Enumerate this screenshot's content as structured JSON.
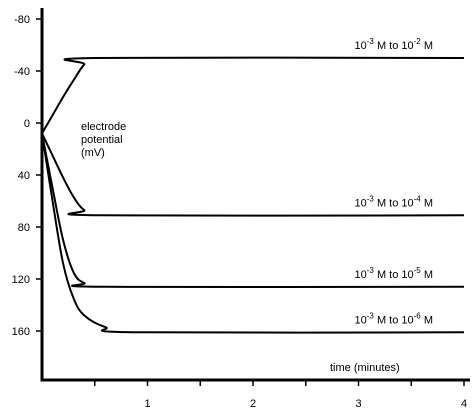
{
  "chart_data": {
    "type": "line",
    "title": "",
    "xlabel": "time (minutes)",
    "ylabel_lines": [
      "electrode",
      "potential",
      "(mV)"
    ],
    "xlim": [
      0,
      4
    ],
    "ylim": [
      -80,
      160
    ],
    "y_inverted": true,
    "grid": false,
    "x_ticks": [
      1,
      2,
      3,
      4
    ],
    "y_ticks": [
      -80,
      -40,
      0,
      40,
      80,
      120,
      160
    ],
    "series": [
      {
        "label": {
          "base": "10",
          "exp1": "-3",
          "mid": " M to 10",
          "exp2": "-2",
          "tail": " M"
        },
        "x": [
          0,
          0.1,
          0.2,
          0.3,
          0.4,
          0.5,
          4
        ],
        "y": [
          8,
          -6,
          -20,
          -33,
          -45,
          -50,
          -50
        ]
      },
      {
        "label": {
          "base": "10",
          "exp1": "-3",
          "mid": " M to 10",
          "exp2": "-4",
          "tail": " M"
        },
        "x": [
          0,
          0.1,
          0.2,
          0.3,
          0.4,
          0.55,
          4
        ],
        "y": [
          8,
          25,
          42,
          57,
          67,
          71,
          71
        ]
      },
      {
        "label": {
          "base": "10",
          "exp1": "-3",
          "mid": " M to 10",
          "exp2": "-5",
          "tail": " M"
        },
        "x": [
          0,
          0.1,
          0.2,
          0.3,
          0.4,
          0.6,
          4
        ],
        "y": [
          8,
          50,
          90,
          115,
          123,
          126,
          126
        ]
      },
      {
        "label": {
          "base": "10",
          "exp1": "-3",
          "mid": " M to 10",
          "exp2": "-6",
          "tail": " M"
        },
        "x": [
          0,
          0.1,
          0.2,
          0.3,
          0.4,
          0.6,
          0.9,
          4
        ],
        "y": [
          8,
          60,
          108,
          135,
          148,
          157,
          161,
          161
        ]
      }
    ]
  }
}
